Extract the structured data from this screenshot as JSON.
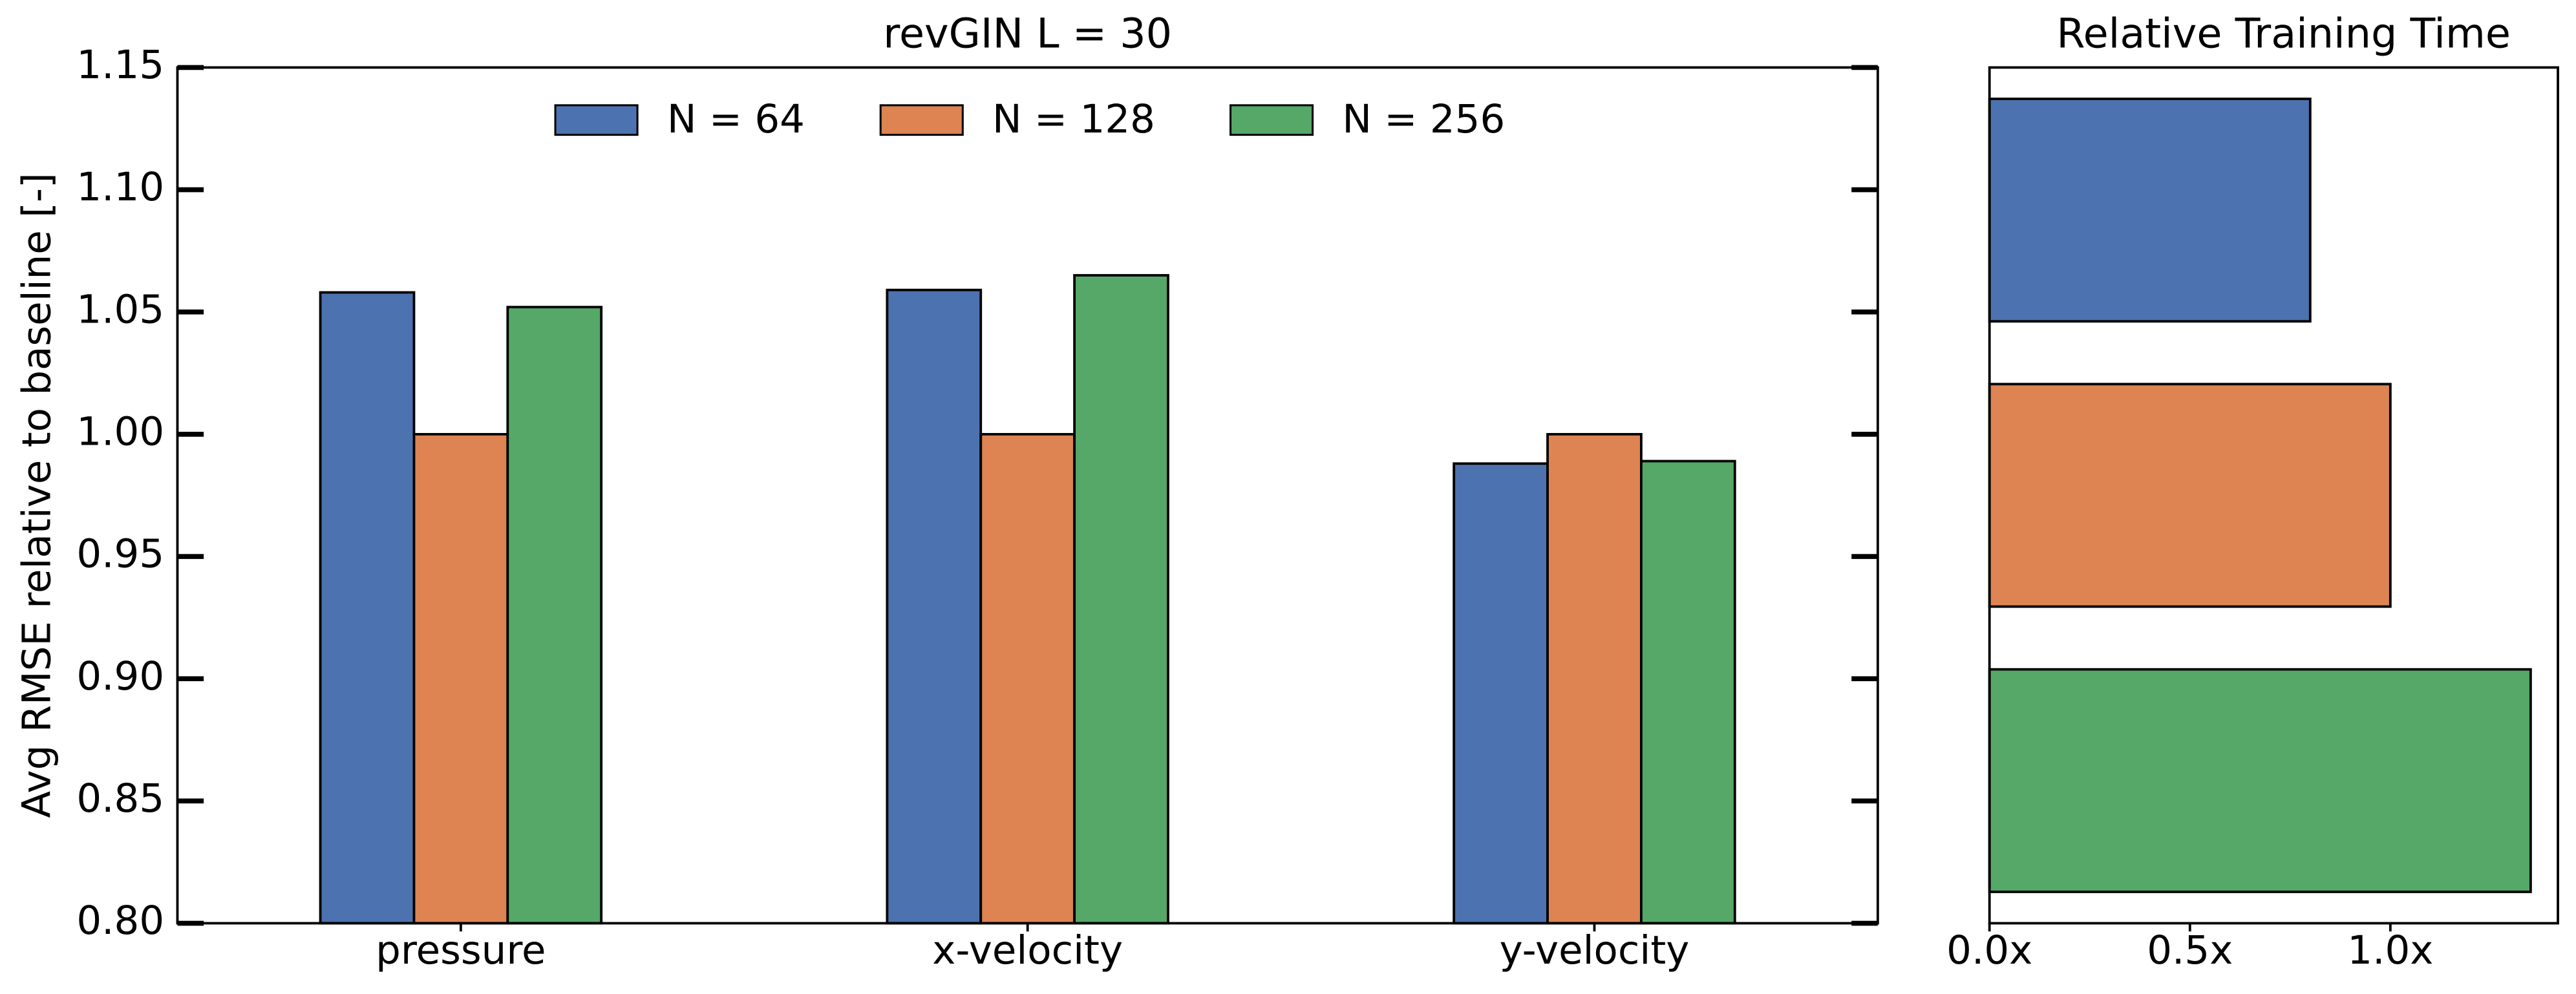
{
  "chart_data": [
    {
      "type": "bar",
      "title": "revGIN L = 30",
      "y_label": "Avg RMSE relative to baseline [-]",
      "categories": [
        "pressure",
        "x-velocity",
        "y-velocity"
      ],
      "series": [
        {
          "name": "N = 64",
          "color": "#4c72b0",
          "values": [
            1.058,
            1.059,
            0.988
          ]
        },
        {
          "name": "N = 128",
          "color": "#dd8452",
          "values": [
            1.0,
            1.0,
            1.0
          ]
        },
        {
          "name": "N = 256",
          "color": "#55a868",
          "values": [
            1.052,
            1.065,
            0.989
          ]
        }
      ],
      "ylim": [
        0.8,
        1.15
      ],
      "yticks": [
        {
          "value": 0.8,
          "label": "0.80"
        },
        0.85,
        {
          "value": 0.9,
          "label": "0.90"
        },
        0.95,
        {
          "value": 1.0,
          "label": "1.00"
        },
        1.05,
        {
          "value": 1.1,
          "label": "1.10"
        },
        1.15
      ],
      "legend": "upper center"
    },
    {
      "type": "barh",
      "title": "Relative Training Time",
      "values": [
        0.8,
        1.0,
        1.35
      ],
      "colors": [
        "#4c72b0",
        "#dd8452",
        "#55a868"
      ],
      "xlim": [
        0,
        1.418
      ],
      "xticks": [
        {
          "value": 0,
          "label": "0.0x"
        },
        {
          "value": 0.5,
          "label": "0.5x"
        },
        {
          "value": 1.0,
          "label": "1.0x"
        }
      ]
    }
  ]
}
